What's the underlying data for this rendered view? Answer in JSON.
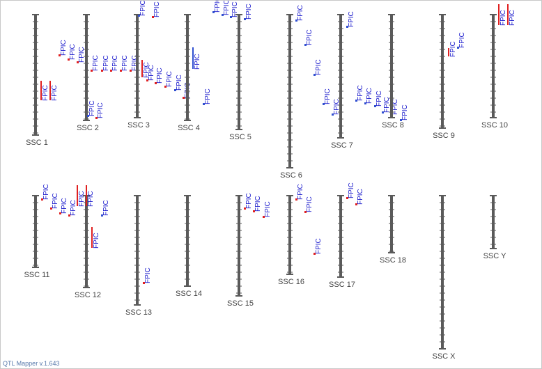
{
  "chromosomes": [
    {
      "name": "SSC 1",
      "qtls": [
        {
          "label": "FPIC"
        },
        {
          "label": "FPIC"
        }
      ]
    },
    {
      "name": "SSC 2",
      "qtls": [
        {
          "label": "FPIC"
        },
        {
          "label": "FPIC"
        },
        {
          "label": "FPIC"
        },
        {
          "label": "FPIC"
        },
        {
          "label": "FPIC"
        },
        {
          "label": "FPIC"
        },
        {
          "label": "FPIC"
        },
        {
          "label": "FPIC"
        },
        {
          "label": "FPIC"
        },
        {
          "label": "FPIC"
        }
      ]
    },
    {
      "name": "SSC 3",
      "qtls": [
        {
          "label": "FPIC"
        },
        {
          "label": "FPIC"
        },
        {
          "label": "FPIC"
        },
        {
          "label": "FPIC"
        },
        {
          "label": "FPIC"
        },
        {
          "label": "FPIC"
        },
        {
          "label": "FPIC"
        },
        {
          "label": "FPIC"
        }
      ]
    },
    {
      "name": "SSC 4",
      "qtls": [
        {
          "label": "FPIC"
        },
        {
          "label": "FPIC"
        },
        {
          "label": "FPIC"
        },
        {
          "label": "FPIC"
        },
        {
          "label": "FPIC"
        }
      ]
    },
    {
      "name": "SSC 5",
      "qtls": [
        {
          "label": "FPIC"
        }
      ]
    },
    {
      "name": "SSC 6",
      "qtls": [
        {
          "label": "FPIC"
        },
        {
          "label": "FPIC"
        },
        {
          "label": "FPIC"
        }
      ]
    },
    {
      "name": "SSC 7",
      "qtls": [
        {
          "label": "FPIC"
        },
        {
          "label": "FPIC"
        },
        {
          "label": "FPIC"
        },
        {
          "label": "FPIC"
        },
        {
          "label": "FPIC"
        },
        {
          "label": "FPIC"
        },
        {
          "label": "FPIC"
        },
        {
          "label": "FPIC"
        },
        {
          "label": "FPIC"
        }
      ]
    },
    {
      "name": "SSC 8",
      "qtls": []
    },
    {
      "name": "SSC 9",
      "qtls": [
        {
          "label": "FPIC"
        },
        {
          "label": "FPIC"
        }
      ]
    },
    {
      "name": "SSC 10",
      "qtls": [
        {
          "label": "FPIC"
        },
        {
          "label": "FPIC"
        }
      ]
    },
    {
      "name": "SSC 11",
      "qtls": [
        {
          "label": "FPIC"
        },
        {
          "label": "FPIC"
        },
        {
          "label": "FPIC"
        },
        {
          "label": "FPIC"
        }
      ]
    },
    {
      "name": "SSC 12",
      "qtls": [
        {
          "label": "FPIC"
        },
        {
          "label": "FPIC"
        },
        {
          "label": "FPIC"
        },
        {
          "label": "FPIC"
        }
      ]
    },
    {
      "name": "SSC 13",
      "qtls": [
        {
          "label": "FPIC"
        }
      ]
    },
    {
      "name": "SSC 14",
      "qtls": []
    },
    {
      "name": "SSC 15",
      "qtls": [
        {
          "label": "FPIC"
        },
        {
          "label": "FPIC"
        },
        {
          "label": "FPIC"
        }
      ]
    },
    {
      "name": "SSC 16",
      "qtls": [
        {
          "label": "FPIC"
        },
        {
          "label": "FPIC"
        },
        {
          "label": "FPIC"
        }
      ]
    },
    {
      "name": "SSC 17",
      "qtls": [
        {
          "label": "FPIC"
        },
        {
          "label": "FPIC"
        }
      ]
    },
    {
      "name": "SSC 18",
      "qtls": []
    },
    {
      "name": "SSC X",
      "qtls": []
    },
    {
      "name": "SSC Y",
      "qtls": []
    }
  ],
  "footer": "QTL Mapper v.1.643"
}
